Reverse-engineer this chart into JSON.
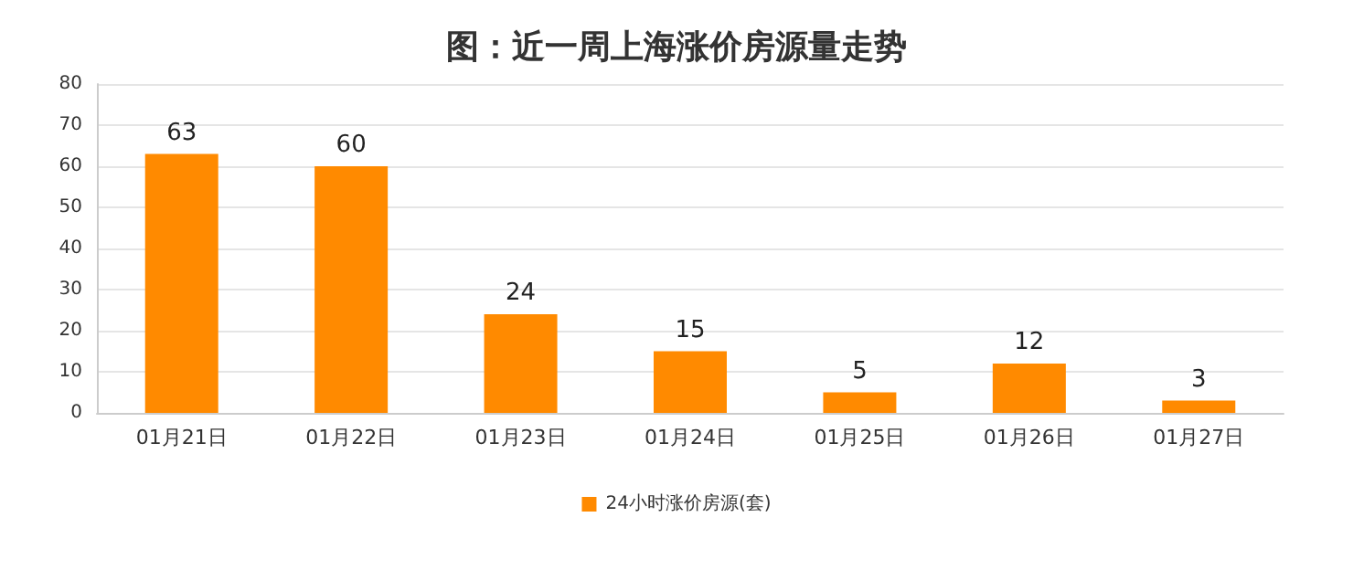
{
  "chart_data": {
    "type": "bar",
    "title": "图：近一周上海涨价房源量走势",
    "categories": [
      "01月21日",
      "01月22日",
      "01月23日",
      "01月24日",
      "01月25日",
      "01月26日",
      "01月27日"
    ],
    "series": [
      {
        "name": "24小时涨价房源(套)",
        "color": "#ff8a00",
        "values": [
          63,
          60,
          24,
          15,
          5,
          12,
          3
        ]
      }
    ],
    "ylim": [
      0,
      80
    ],
    "yticks": [
      0,
      10,
      20,
      30,
      40,
      50,
      60,
      70,
      80
    ],
    "grid": "y",
    "legend": "bottom",
    "data_labels": true
  }
}
